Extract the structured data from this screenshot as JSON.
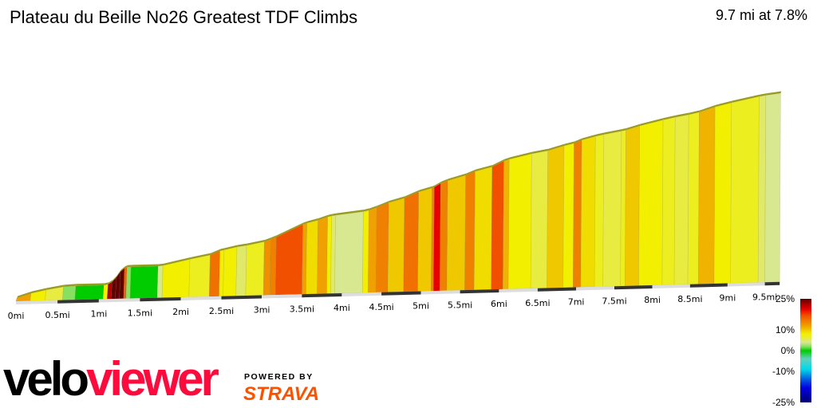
{
  "header": {
    "title": "Plateau du Beille No26 Greatest TDF Climbs",
    "summary": "9.7 mi at 7.8%"
  },
  "branding": {
    "logo_part1": "velo",
    "logo_part2": "viewer",
    "powered_by": "POWERED BY",
    "strava": "STRAVA"
  },
  "chart_data": {
    "type": "area",
    "title": "",
    "xlabel": "",
    "ylabel": "",
    "x_unit": "mi",
    "total_distance": 9.7,
    "x_ticks": [
      "0mi",
      "0.5mi",
      "1mi",
      "1.5mi",
      "2mi",
      "2.5mi",
      "3mi",
      "3.5mi",
      "4mi",
      "4.5mi",
      "5mi",
      "5.5mi",
      "6mi",
      "6.5mi",
      "7mi",
      "7.5mi",
      "8mi",
      "8.5mi",
      "9mi",
      "9.5mi"
    ],
    "x_tick_values": [
      0,
      0.5,
      1,
      1.5,
      2,
      2.5,
      3,
      3.5,
      4,
      4.5,
      5,
      5.5,
      6,
      6.5,
      7,
      7.5,
      8,
      8.5,
      9,
      9.5
    ],
    "segments_note_fields": [
      "start_mi",
      "end_mi",
      "gradient_pct"
    ],
    "segments": [
      [
        0.0,
        0.17,
        12
      ],
      [
        0.17,
        0.35,
        8
      ],
      [
        0.35,
        0.56,
        6
      ],
      [
        0.56,
        0.71,
        2
      ],
      [
        0.71,
        1.05,
        0
      ],
      [
        1.05,
        1.1,
        8
      ],
      [
        1.1,
        1.15,
        22
      ],
      [
        1.15,
        1.2,
        40
      ],
      [
        1.2,
        1.25,
        55
      ],
      [
        1.25,
        1.3,
        30
      ],
      [
        1.3,
        1.33,
        16
      ],
      [
        1.33,
        1.38,
        2
      ],
      [
        1.38,
        1.71,
        0
      ],
      [
        1.71,
        1.77,
        4
      ],
      [
        1.77,
        2.1,
        8
      ],
      [
        2.1,
        2.35,
        7
      ],
      [
        2.35,
        2.47,
        15
      ],
      [
        2.47,
        2.52,
        8
      ],
      [
        2.52,
        2.68,
        8
      ],
      [
        2.68,
        2.8,
        5
      ],
      [
        2.8,
        3.02,
        7
      ],
      [
        3.02,
        3.1,
        13
      ],
      [
        3.1,
        3.17,
        14
      ],
      [
        3.17,
        3.5,
        17
      ],
      [
        3.5,
        3.55,
        12
      ],
      [
        3.55,
        3.69,
        9
      ],
      [
        3.69,
        3.81,
        12
      ],
      [
        3.81,
        3.86,
        8
      ],
      [
        3.86,
        3.91,
        5
      ],
      [
        3.91,
        4.26,
        4
      ],
      [
        4.26,
        4.33,
        8
      ],
      [
        4.33,
        4.43,
        12
      ],
      [
        4.43,
        4.58,
        14
      ],
      [
        4.58,
        4.78,
        10
      ],
      [
        4.78,
        4.96,
        15
      ],
      [
        4.96,
        5.13,
        10
      ],
      [
        5.13,
        5.16,
        14
      ],
      [
        5.16,
        5.24,
        20
      ],
      [
        5.24,
        5.33,
        14
      ],
      [
        5.33,
        5.56,
        10
      ],
      [
        5.56,
        5.68,
        14
      ],
      [
        5.68,
        5.9,
        9
      ],
      [
        5.9,
        6.05,
        17
      ],
      [
        6.05,
        6.12,
        11
      ],
      [
        6.12,
        6.41,
        8
      ],
      [
        6.41,
        6.62,
        6
      ],
      [
        6.62,
        6.83,
        10
      ],
      [
        6.83,
        6.96,
        8
      ],
      [
        6.96,
        7.06,
        14
      ],
      [
        7.06,
        7.24,
        9
      ],
      [
        7.24,
        7.35,
        7
      ],
      [
        7.35,
        7.58,
        6
      ],
      [
        7.58,
        7.64,
        7
      ],
      [
        7.64,
        7.82,
        10
      ],
      [
        7.82,
        8.13,
        8
      ],
      [
        8.13,
        8.29,
        7
      ],
      [
        8.29,
        8.47,
        6
      ],
      [
        8.47,
        8.61,
        7
      ],
      [
        8.61,
        8.82,
        11
      ],
      [
        8.82,
        9.04,
        8
      ],
      [
        9.04,
        9.41,
        7
      ],
      [
        9.41,
        9.5,
        5
      ],
      [
        9.5,
        9.7,
        4
      ]
    ],
    "legend": {
      "placement": "bottom-right",
      "labels": [
        "25%",
        "10%",
        "0%",
        "-10%",
        "-25%"
      ],
      "label_values": [
        25,
        10,
        0,
        -10,
        -25
      ],
      "color_stops": [
        [
          -25,
          "#000070"
        ],
        [
          -18,
          "#0000e0"
        ],
        [
          -13,
          "#0070e0"
        ],
        [
          -9,
          "#00d8e8"
        ],
        [
          -4,
          "#60d0c0"
        ],
        [
          0,
          "#00cc00"
        ],
        [
          2,
          "#88e060"
        ],
        [
          4,
          "#d8e890"
        ],
        [
          6,
          "#e8ec40"
        ],
        [
          8,
          "#f2f000"
        ],
        [
          10,
          "#f0c800"
        ],
        [
          12,
          "#f0a000"
        ],
        [
          14,
          "#f08000"
        ],
        [
          17,
          "#f05000"
        ],
        [
          20,
          "#e80000"
        ],
        [
          25,
          "#600000"
        ]
      ]
    },
    "grid": false
  }
}
